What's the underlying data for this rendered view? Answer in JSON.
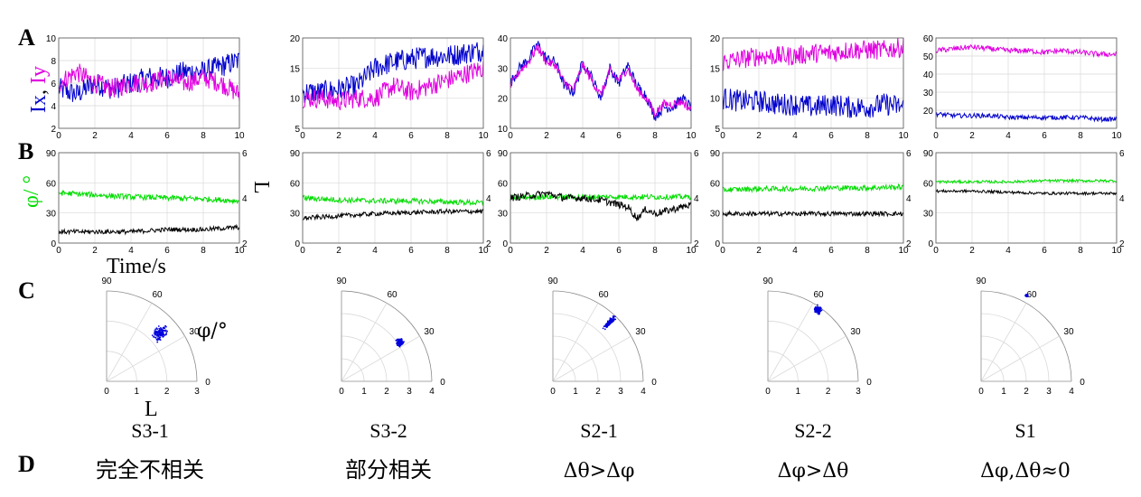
{
  "panels": {
    "A": "A",
    "B": "B",
    "C": "C",
    "D": "D"
  },
  "labels": {
    "a_ylabel_x": "Ix",
    "a_ylabel_sep": ", ",
    "a_ylabel_y": "Iy",
    "b_ylabel_left": "φ/ °",
    "b_ylabel_right": "L",
    "b_xlabel": "Time/s",
    "c_angle_label": "φ/°",
    "c_radius_label": "L"
  },
  "colors": {
    "ix": "#0000cc",
    "iy": "#e000e0",
    "phi": "#00dd00",
    "L": "#000000",
    "scatter": "#0000dd",
    "grid": "#d9d9d9",
    "axis": "#8c8c8c"
  },
  "subjects": [
    {
      "id": "S3-1",
      "description": "完全不相关"
    },
    {
      "id": "S3-2",
      "description": "部分相关"
    },
    {
      "id": "S2-1",
      "description": "Δθ>Δφ"
    },
    {
      "id": "S2-2",
      "description": "Δφ>Δθ"
    },
    {
      "id": "S1",
      "description": "Δφ,Δθ≈0"
    }
  ],
  "chart_data": [
    {
      "type": "line",
      "name": "A-S3-1",
      "xlim": [
        0,
        10
      ],
      "ylim": [
        2,
        10
      ],
      "xticks": [
        0,
        2,
        4,
        6,
        8,
        10
      ],
      "yticks": [
        2,
        4,
        6,
        8,
        10
      ],
      "series": [
        {
          "color": "#0000cc",
          "x": [
            0,
            1,
            2,
            3,
            4,
            5,
            6,
            7,
            8,
            9,
            10
          ],
          "y": [
            5.5,
            5,
            6,
            5.5,
            6,
            6.5,
            6.5,
            7,
            7,
            7.5,
            8
          ]
        },
        {
          "color": "#e000e0",
          "x": [
            0,
            1,
            2,
            3,
            4,
            5,
            6,
            7,
            8,
            9,
            10
          ],
          "y": [
            6,
            7,
            6,
            5.5,
            6,
            6,
            6.5,
            6,
            6.5,
            6,
            5
          ]
        }
      ]
    },
    {
      "type": "line",
      "name": "A-S3-2",
      "xlim": [
        0,
        10
      ],
      "ylim": [
        5,
        20
      ],
      "xticks": [
        0,
        2,
        4,
        6,
        8,
        10
      ],
      "yticks": [
        5,
        10,
        15,
        20
      ],
      "series": [
        {
          "color": "#0000cc",
          "x": [
            0,
            1,
            2,
            3,
            4,
            5,
            6,
            7,
            8,
            9,
            10
          ],
          "y": [
            11,
            11,
            11.5,
            12,
            15,
            16,
            16.5,
            17,
            17,
            17.5,
            18
          ]
        },
        {
          "color": "#e000e0",
          "x": [
            0,
            1,
            2,
            3,
            4,
            5,
            6,
            7,
            8,
            9,
            10
          ],
          "y": [
            10,
            10,
            9.5,
            10,
            10,
            12,
            11,
            12,
            13,
            14,
            15
          ]
        }
      ]
    },
    {
      "type": "line",
      "name": "A-S2-1",
      "xlim": [
        0,
        10
      ],
      "ylim": [
        10,
        40
      ],
      "xticks": [
        0,
        2,
        4,
        6,
        8,
        10
      ],
      "yticks": [
        10,
        20,
        30,
        40
      ],
      "series": [
        {
          "color": "#0000cc",
          "x": [
            0,
            0.5,
            1,
            1.5,
            2,
            2.5,
            3,
            3.5,
            4,
            4.5,
            5,
            5.5,
            6,
            6.5,
            7,
            7.5,
            8,
            8.5,
            9,
            9.5,
            10
          ],
          "y": [
            25,
            30,
            33,
            38,
            33,
            32,
            24,
            22,
            32,
            27,
            20,
            30,
            25,
            31,
            24,
            21,
            14,
            17,
            17,
            20,
            17
          ]
        },
        {
          "color": "#e000e0",
          "x": [
            0,
            0.5,
            1,
            1.5,
            2,
            2.5,
            3,
            3.5,
            4,
            4.5,
            5,
            5.5,
            6,
            6.5,
            7,
            7.5,
            8,
            8.5,
            9,
            9.5,
            10
          ],
          "y": [
            24,
            29,
            32,
            37,
            32,
            31,
            25,
            23,
            31,
            26,
            21,
            29,
            26,
            30,
            23,
            20,
            15,
            18,
            18,
            19,
            16
          ]
        }
      ]
    },
    {
      "type": "line",
      "name": "A-S2-2",
      "xlim": [
        0,
        10
      ],
      "ylim": [
        5,
        20
      ],
      "xticks": [
        0,
        2,
        4,
        6,
        8,
        10
      ],
      "yticks": [
        5,
        10,
        15,
        20
      ],
      "series": [
        {
          "color": "#0000cc",
          "x": [
            0,
            1,
            2,
            3,
            4,
            5,
            6,
            7,
            8,
            9,
            10
          ],
          "y": [
            10,
            9.5,
            9.5,
            9,
            9,
            8.5,
            9,
            8.5,
            8.5,
            9,
            8.5
          ]
        },
        {
          "color": "#e000e0",
          "x": [
            0,
            1,
            2,
            3,
            4,
            5,
            6,
            7,
            8,
            9,
            10
          ],
          "y": [
            16,
            16.5,
            17,
            17,
            17,
            17.5,
            17.5,
            18,
            18,
            18,
            18.5
          ]
        }
      ]
    },
    {
      "type": "line",
      "name": "A-S1",
      "xlim": [
        0,
        10
      ],
      "ylim": [
        10,
        60
      ],
      "xticks": [
        0,
        2,
        4,
        6,
        8,
        10
      ],
      "yticks": [
        20,
        30,
        40,
        50,
        60
      ],
      "series": [
        {
          "color": "#0000cc",
          "x": [
            0,
            1,
            2,
            3,
            4,
            5,
            6,
            7,
            8,
            9,
            10
          ],
          "y": [
            18,
            17,
            17,
            17,
            16,
            16,
            16,
            16,
            16,
            15,
            15
          ]
        },
        {
          "color": "#e000e0",
          "x": [
            0,
            1,
            2,
            3,
            4,
            5,
            6,
            7,
            8,
            9,
            10
          ],
          "y": [
            53,
            54,
            55,
            54,
            53,
            53,
            52,
            53,
            52,
            51,
            51
          ]
        }
      ]
    },
    {
      "type": "line",
      "name": "B-S3-1",
      "xlim": [
        0,
        10
      ],
      "ylim": [
        0,
        90
      ],
      "y2lim": [
        2,
        6
      ],
      "xticks": [
        0,
        2,
        4,
        6,
        8,
        10
      ],
      "yticks": [
        0,
        30,
        60,
        90
      ],
      "y2ticks": [
        2,
        4,
        6
      ],
      "series": [
        {
          "color": "#00dd00",
          "axis": "left",
          "x": [
            0,
            2,
            4,
            6,
            8,
            10
          ],
          "y": [
            50,
            48,
            46,
            45,
            44,
            42
          ]
        },
        {
          "color": "#000000",
          "axis": "right",
          "x": [
            0,
            2,
            4,
            6,
            8,
            10
          ],
          "y": [
            2.5,
            2.5,
            2.5,
            2.6,
            2.6,
            2.7
          ]
        }
      ]
    },
    {
      "type": "line",
      "name": "B-S3-2",
      "xlim": [
        0,
        10
      ],
      "ylim": [
        0,
        90
      ],
      "y2lim": [
        2,
        6
      ],
      "xticks": [
        0,
        2,
        4,
        6,
        8,
        10
      ],
      "yticks": [
        0,
        30,
        60,
        90
      ],
      "y2ticks": [
        2,
        4,
        6
      ],
      "series": [
        {
          "color": "#00dd00",
          "axis": "left",
          "x": [
            0,
            2,
            4,
            6,
            8,
            10
          ],
          "y": [
            45,
            43,
            42,
            42,
            41,
            40
          ]
        },
        {
          "color": "#000000",
          "axis": "right",
          "x": [
            0,
            2,
            4,
            6,
            8,
            10
          ],
          "y": [
            3.1,
            3.2,
            3.3,
            3.35,
            3.4,
            3.4
          ]
        }
      ]
    },
    {
      "type": "line",
      "name": "B-S2-1",
      "xlim": [
        0,
        10
      ],
      "ylim": [
        0,
        90
      ],
      "y2lim": [
        2,
        6
      ],
      "xticks": [
        0,
        2,
        4,
        6,
        8,
        10
      ],
      "yticks": [
        0,
        30,
        60,
        90
      ],
      "y2ticks": [
        2,
        4,
        6
      ],
      "series": [
        {
          "color": "#00dd00",
          "axis": "left",
          "x": [
            0,
            2,
            4,
            6,
            8,
            10
          ],
          "y": [
            45,
            46,
            46,
            46,
            46,
            46
          ]
        },
        {
          "color": "#000000",
          "axis": "right",
          "x": [
            0,
            1,
            2,
            3,
            4,
            5,
            6,
            6.5,
            7,
            7.5,
            8,
            9,
            10
          ],
          "y": [
            4,
            4.1,
            4.2,
            4,
            4,
            3.9,
            3.7,
            3.6,
            3.1,
            3.5,
            3.3,
            3.5,
            3.7
          ]
        }
      ]
    },
    {
      "type": "line",
      "name": "B-S2-2",
      "xlim": [
        0,
        10
      ],
      "ylim": [
        0,
        90
      ],
      "y2lim": [
        2,
        6
      ],
      "xticks": [
        0,
        2,
        4,
        6,
        8,
        10
      ],
      "yticks": [
        0,
        30,
        60,
        90
      ],
      "y2ticks": [
        2,
        4,
        6
      ],
      "series": [
        {
          "color": "#00dd00",
          "axis": "left",
          "x": [
            0,
            2,
            4,
            6,
            8,
            10
          ],
          "y": [
            53,
            54,
            54,
            55,
            55,
            56
          ]
        },
        {
          "color": "#000000",
          "axis": "right",
          "x": [
            0,
            2,
            4,
            6,
            8,
            10
          ],
          "y": [
            3.3,
            3.3,
            3.3,
            3.3,
            3.3,
            3.3
          ]
        }
      ]
    },
    {
      "type": "line",
      "name": "B-S1",
      "xlim": [
        0,
        10
      ],
      "ylim": [
        0,
        90
      ],
      "y2lim": [
        2,
        6
      ],
      "xticks": [
        0,
        2,
        4,
        6,
        8,
        10
      ],
      "yticks": [
        0,
        30,
        60,
        90
      ],
      "y2ticks": [
        2,
        4,
        6
      ],
      "series": [
        {
          "color": "#00dd00",
          "axis": "left",
          "x": [
            0,
            2,
            4,
            6,
            8,
            10
          ],
          "y": [
            61,
            61,
            61,
            62,
            62,
            62
          ]
        },
        {
          "color": "#000000",
          "axis": "right",
          "x": [
            0,
            2,
            4,
            6,
            8,
            10
          ],
          "y": [
            4.3,
            4.3,
            4.25,
            4.2,
            4.2,
            4.2
          ]
        }
      ]
    },
    {
      "type": "scatter",
      "name": "C-S3-1",
      "polar": true,
      "rlim": [
        0,
        3
      ],
      "rticks": [
        0,
        1,
        2,
        3
      ],
      "thetaticks": [
        0,
        30,
        60,
        90
      ],
      "cluster": {
        "r_center": 2.4,
        "theta_center": 42,
        "r_spread": 0.35,
        "theta_spread": 6
      }
    },
    {
      "type": "scatter",
      "name": "C-S3-2",
      "polar": true,
      "rlim": [
        0,
        4
      ],
      "rticks": [
        0,
        1,
        2,
        3,
        4
      ],
      "thetaticks": [
        0,
        30,
        60,
        90
      ],
      "cluster": {
        "r_center": 3.1,
        "theta_center": 34,
        "r_spread": 0.2,
        "theta_spread": 4
      }
    },
    {
      "type": "scatter",
      "name": "C-S2-1",
      "polar": true,
      "rlim": [
        0,
        4
      ],
      "rticks": [
        0,
        1,
        2,
        3,
        4
      ],
      "thetaticks": [
        0,
        30,
        60,
        90
      ],
      "cluster": {
        "r_center": 3.6,
        "theta_center": 46,
        "r_spread": 0.45,
        "theta_spread": 2
      }
    },
    {
      "type": "scatter",
      "name": "C-S2-2",
      "polar": true,
      "rlim": [
        0,
        3
      ],
      "rticks": [
        0,
        1,
        2,
        3
      ],
      "thetaticks": [
        0,
        30,
        60,
        90
      ],
      "cluster": {
        "r_center": 2.9,
        "theta_center": 55,
        "r_spread": 0.15,
        "theta_spread": 3
      }
    },
    {
      "type": "scatter",
      "name": "C-S1",
      "polar": true,
      "rlim": [
        0,
        4
      ],
      "rticks": [
        0,
        1,
        2,
        3,
        4
      ],
      "thetaticks": [
        0,
        30,
        60,
        90
      ],
      "cluster": {
        "r_center": 4.3,
        "theta_center": 62,
        "r_spread": 0.05,
        "theta_spread": 1
      }
    }
  ]
}
